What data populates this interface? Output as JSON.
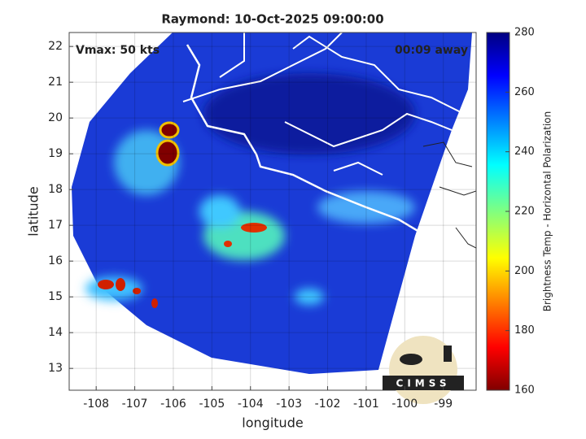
{
  "chart_data": {
    "type": "map",
    "title": "Raymond: 10-Oct-2025 09:00:00",
    "annotations": [
      "Vmax: 50 kts",
      "00:09 away"
    ],
    "x_label": "longitude",
    "y_label": "latitude",
    "xlim": [
      -108.7,
      -98.15
    ],
    "ylim": [
      12.39,
      22.39
    ],
    "xticks": [
      -108,
      -107,
      -106,
      -105,
      -104,
      -103,
      -102,
      -101,
      -100,
      -99
    ],
    "yticks": [
      13,
      14,
      15,
      16,
      17,
      18,
      19,
      20,
      21,
      22
    ],
    "grid": true,
    "colorbar": {
      "label": "Brightness Temp - Horizontal Polarization",
      "lim": [
        160,
        280
      ],
      "ticks": [
        160,
        180,
        200,
        220,
        240,
        260,
        280
      ]
    },
    "logo": "CIMSS"
  }
}
